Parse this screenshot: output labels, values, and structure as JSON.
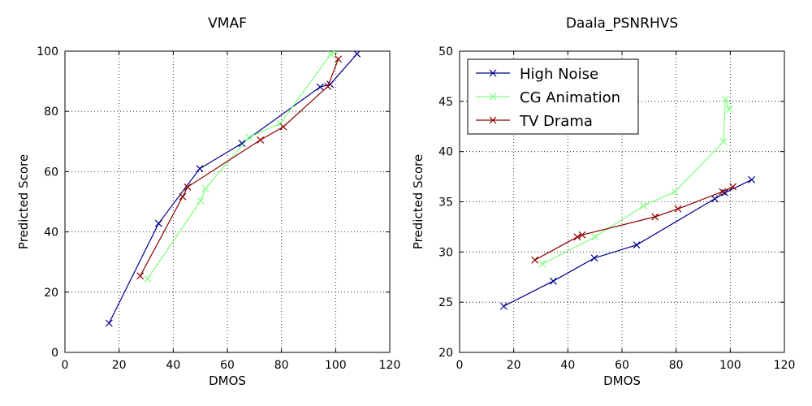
{
  "chart_data": [
    {
      "type": "line",
      "title": "VMAF",
      "xlabel": "DMOS",
      "ylabel": "Predicted Score",
      "xlim": [
        0,
        120
      ],
      "ylim": [
        0,
        100
      ],
      "xticks": [
        0,
        20,
        40,
        60,
        80,
        100,
        120
      ],
      "yticks": [
        0,
        20,
        40,
        60,
        80,
        100
      ],
      "xtick_labels": [
        "0",
        "20",
        "40",
        "60",
        "80",
        "100",
        "120"
      ],
      "ytick_labels": [
        "0",
        "20",
        "40",
        "60",
        "80",
        "100"
      ],
      "grid": true,
      "series": [
        {
          "name": "High Noise",
          "color": "#00008b",
          "points": [
            [
              16.3,
              9.7
            ],
            [
              34.6,
              42.8
            ],
            [
              49.8,
              61.0
            ],
            [
              65.4,
              69.4
            ],
            [
              94.3,
              88.1
            ],
            [
              98.0,
              89.0
            ],
            [
              107.9,
              99.1
            ]
          ]
        },
        {
          "name": "CG Animation",
          "color": "#7fff7f",
          "points": [
            [
              30.5,
              24.4
            ],
            [
              50.1,
              50.3
            ],
            [
              51.9,
              54.4
            ],
            [
              68.0,
              71.4
            ],
            [
              79.6,
              76.0
            ],
            [
              98.2,
              99.0
            ],
            [
              99.7,
              100.0
            ]
          ]
        },
        {
          "name": "TV Drama",
          "color": "#8b0000",
          "points": [
            [
              27.8,
              25.4
            ],
            [
              43.5,
              51.7
            ],
            [
              45.3,
              54.9
            ],
            [
              72.2,
              70.5
            ],
            [
              80.7,
              74.9
            ],
            [
              97.1,
              88.3
            ],
            [
              101.0,
              97.4
            ]
          ]
        }
      ]
    },
    {
      "type": "line",
      "title": "Daala_PSNRHVS",
      "xlabel": "DMOS",
      "ylabel": "Predicted Score",
      "xlim": [
        0,
        120
      ],
      "ylim": [
        20,
        50
      ],
      "xticks": [
        0,
        20,
        40,
        60,
        80,
        100,
        120
      ],
      "yticks": [
        20,
        25,
        30,
        35,
        40,
        45,
        50
      ],
      "xtick_labels": [
        "0",
        "20",
        "40",
        "60",
        "80",
        "100",
        "120"
      ],
      "ytick_labels": [
        "20",
        "25",
        "30",
        "35",
        "40",
        "45",
        "50"
      ],
      "grid": true,
      "legend": {
        "position": "top-left",
        "entries": [
          "High Noise",
          "CG Animation",
          "TV Drama"
        ]
      },
      "series": [
        {
          "name": "High Noise",
          "color": "#00008b",
          "points": [
            [
              16.3,
              24.6
            ],
            [
              34.6,
              27.1
            ],
            [
              49.8,
              29.4
            ],
            [
              65.4,
              30.7
            ],
            [
              94.3,
              35.3
            ],
            [
              98.0,
              35.9
            ],
            [
              107.9,
              37.2
            ]
          ]
        },
        {
          "name": "CG Animation",
          "color": "#7fff7f",
          "points": [
            [
              30.5,
              28.8
            ],
            [
              50.1,
              31.5
            ],
            [
              68.0,
              34.6
            ],
            [
              79.6,
              36.0
            ],
            [
              97.5,
              41.0
            ],
            [
              98.2,
              45.2
            ],
            [
              99.7,
              44.2
            ]
          ]
        },
        {
          "name": "TV Drama",
          "color": "#8b0000",
          "points": [
            [
              27.8,
              29.2
            ],
            [
              43.5,
              31.5
            ],
            [
              45.3,
              31.7
            ],
            [
              72.2,
              33.5
            ],
            [
              80.7,
              34.3
            ],
            [
              97.1,
              36.0
            ],
            [
              101.0,
              36.5
            ]
          ]
        }
      ]
    }
  ]
}
